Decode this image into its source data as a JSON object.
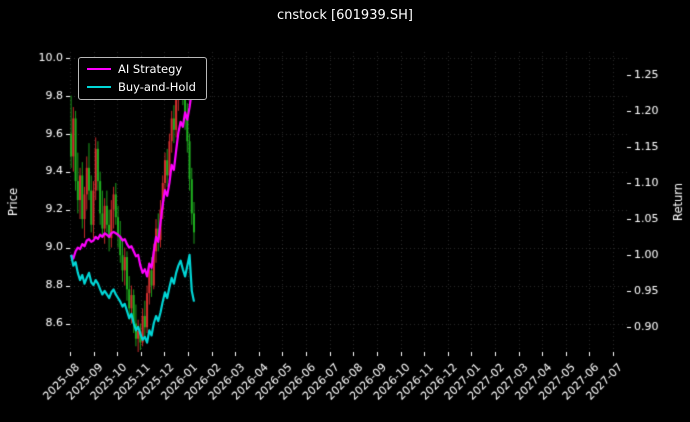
{
  "chart_data": {
    "type": "candlestick+line",
    "title": "cnstock [601939.SH]",
    "left_axis": {
      "label": "Price",
      "ticks": [
        8.6,
        8.8,
        9.0,
        9.2,
        9.4,
        9.6,
        9.8,
        10.0
      ],
      "lim": [
        8.45,
        10.03
      ]
    },
    "right_axis": {
      "label": "Return",
      "ticks": [
        0.9,
        0.95,
        1.0,
        1.05,
        1.1,
        1.15,
        1.2,
        1.25
      ],
      "lim": [
        0.865,
        1.282
      ]
    },
    "x_axis": {
      "tick_labels": [
        "2025-08",
        "2025-09",
        "2025-10",
        "2025-11",
        "2025-12",
        "2026-01",
        "2026-02",
        "2026-03",
        "2026-04",
        "2026-05",
        "2026-06",
        "2026-07",
        "2026-08",
        "2026-09",
        "2026-10",
        "2026-11",
        "2026-12",
        "2027-01",
        "2027-02",
        "2027-03",
        "2027-04",
        "2027-05",
        "2027-06",
        "2027-07"
      ],
      "candle_span_months": 5.3
    },
    "candles": [
      [
        9.6,
        9.8,
        9.42,
        9.48
      ],
      [
        9.48,
        9.74,
        9.4,
        9.68
      ],
      [
        9.68,
        9.72,
        9.3,
        9.35
      ],
      [
        9.35,
        9.5,
        9.18,
        9.25
      ],
      [
        9.25,
        9.42,
        9.15,
        9.38
      ],
      [
        9.38,
        9.45,
        9.1,
        9.15
      ],
      [
        9.15,
        9.32,
        9.05,
        9.28
      ],
      [
        9.28,
        9.48,
        9.2,
        9.42
      ],
      [
        9.42,
        9.55,
        9.25,
        9.3
      ],
      [
        9.3,
        9.38,
        9.08,
        9.12
      ],
      [
        9.12,
        9.35,
        9.05,
        9.3
      ],
      [
        9.3,
        9.58,
        9.25,
        9.52
      ],
      [
        9.52,
        9.56,
        9.3,
        9.35
      ],
      [
        9.35,
        9.4,
        9.12,
        9.18
      ],
      [
        9.18,
        9.3,
        9.05,
        9.1
      ],
      [
        9.1,
        9.26,
        9.02,
        9.22
      ],
      [
        9.22,
        9.3,
        9.08,
        9.12
      ],
      [
        9.12,
        9.2,
        8.98,
        9.05
      ],
      [
        9.05,
        9.25,
        9.0,
        9.2
      ],
      [
        9.2,
        9.32,
        9.1,
        9.28
      ],
      [
        9.28,
        9.34,
        9.12,
        9.16
      ],
      [
        9.16,
        9.22,
        9.0,
        9.06
      ],
      [
        9.06,
        9.14,
        8.92,
        8.96
      ],
      [
        8.96,
        9.05,
        8.82,
        8.88
      ],
      [
        8.88,
        9.0,
        8.8,
        8.95
      ],
      [
        8.95,
        8.98,
        8.72,
        8.78
      ],
      [
        8.78,
        8.85,
        8.62,
        8.68
      ],
      [
        8.68,
        8.8,
        8.6,
        8.75
      ],
      [
        8.75,
        8.78,
        8.55,
        8.6
      ],
      [
        8.6,
        8.7,
        8.48,
        8.52
      ],
      [
        8.52,
        8.62,
        8.45,
        8.56
      ],
      [
        8.56,
        8.6,
        8.46,
        8.5
      ],
      [
        8.5,
        8.68,
        8.48,
        8.64
      ],
      [
        8.64,
        8.72,
        8.52,
        8.58
      ],
      [
        8.58,
        8.8,
        8.55,
        8.76
      ],
      [
        8.76,
        8.92,
        8.7,
        8.88
      ],
      [
        8.88,
        8.95,
        8.74,
        8.8
      ],
      [
        8.8,
        9.02,
        8.78,
        8.98
      ],
      [
        8.98,
        9.15,
        8.92,
        9.1
      ],
      [
        9.1,
        9.18,
        8.98,
        9.04
      ],
      [
        9.04,
        9.25,
        9.0,
        9.2
      ],
      [
        9.2,
        9.38,
        9.15,
        9.34
      ],
      [
        9.34,
        9.5,
        9.28,
        9.46
      ],
      [
        9.46,
        9.52,
        9.32,
        9.38
      ],
      [
        9.38,
        9.6,
        9.35,
        9.56
      ],
      [
        9.56,
        9.72,
        9.5,
        9.68
      ],
      [
        9.68,
        9.75,
        9.55,
        9.62
      ],
      [
        9.62,
        9.82,
        9.58,
        9.78
      ],
      [
        9.78,
        9.92,
        9.72,
        9.88
      ],
      [
        9.88,
        9.97,
        9.8,
        9.94
      ],
      [
        9.94,
        9.98,
        9.75,
        9.8
      ],
      [
        9.8,
        9.88,
        9.62,
        9.68
      ],
      [
        9.68,
        9.76,
        9.5,
        9.56
      ],
      [
        9.56,
        9.6,
        9.3,
        9.36
      ],
      [
        9.36,
        9.42,
        9.12,
        9.18
      ],
      [
        9.18,
        9.24,
        9.02,
        9.08
      ]
    ],
    "series": [
      {
        "name": "AI Strategy",
        "color": "#ff00ff",
        "axis": "return",
        "values": [
          1.0,
          0.995,
          1.005,
          1.01,
          1.008,
          1.015,
          1.012,
          1.02,
          1.022,
          1.018,
          1.02,
          1.025,
          1.022,
          1.028,
          1.025,
          1.03,
          1.028,
          1.025,
          1.03,
          1.032,
          1.03,
          1.028,
          1.025,
          1.02,
          1.022,
          1.015,
          1.01,
          1.012,
          1.005,
          0.998,
          1.0,
          0.985,
          0.975,
          0.98,
          0.97,
          0.988,
          0.982,
          1.005,
          1.025,
          1.018,
          1.045,
          1.07,
          1.09,
          1.082,
          1.1,
          1.125,
          1.118,
          1.145,
          1.17,
          1.185,
          1.178,
          1.198,
          1.188,
          1.205,
          1.228,
          1.238
        ]
      },
      {
        "name": "Buy-and-Hold",
        "color": "#00d7d7",
        "axis": "return",
        "values": [
          1.0,
          0.985,
          0.99,
          0.975,
          0.965,
          0.972,
          0.96,
          0.968,
          0.975,
          0.962,
          0.958,
          0.965,
          0.96,
          0.952,
          0.945,
          0.95,
          0.945,
          0.94,
          0.948,
          0.952,
          0.945,
          0.94,
          0.935,
          0.928,
          0.932,
          0.922,
          0.912,
          0.918,
          0.905,
          0.895,
          0.9,
          0.89,
          0.882,
          0.886,
          0.878,
          0.895,
          0.888,
          0.905,
          0.915,
          0.908,
          0.92,
          0.935,
          0.948,
          0.94,
          0.955,
          0.968,
          0.96,
          0.975,
          0.985,
          0.992,
          0.98,
          0.97,
          0.985,
          1.0,
          0.95,
          0.935
        ]
      }
    ],
    "colors": {
      "background": "#000000",
      "text": "#ffffff",
      "grid": "rgba(255,255,255,0.16)",
      "up_candle": "#d62f2f",
      "down_candle": "#1fae1f",
      "tick": "#ffffff"
    },
    "legend_position": "upper-left",
    "grid": "dotted"
  }
}
